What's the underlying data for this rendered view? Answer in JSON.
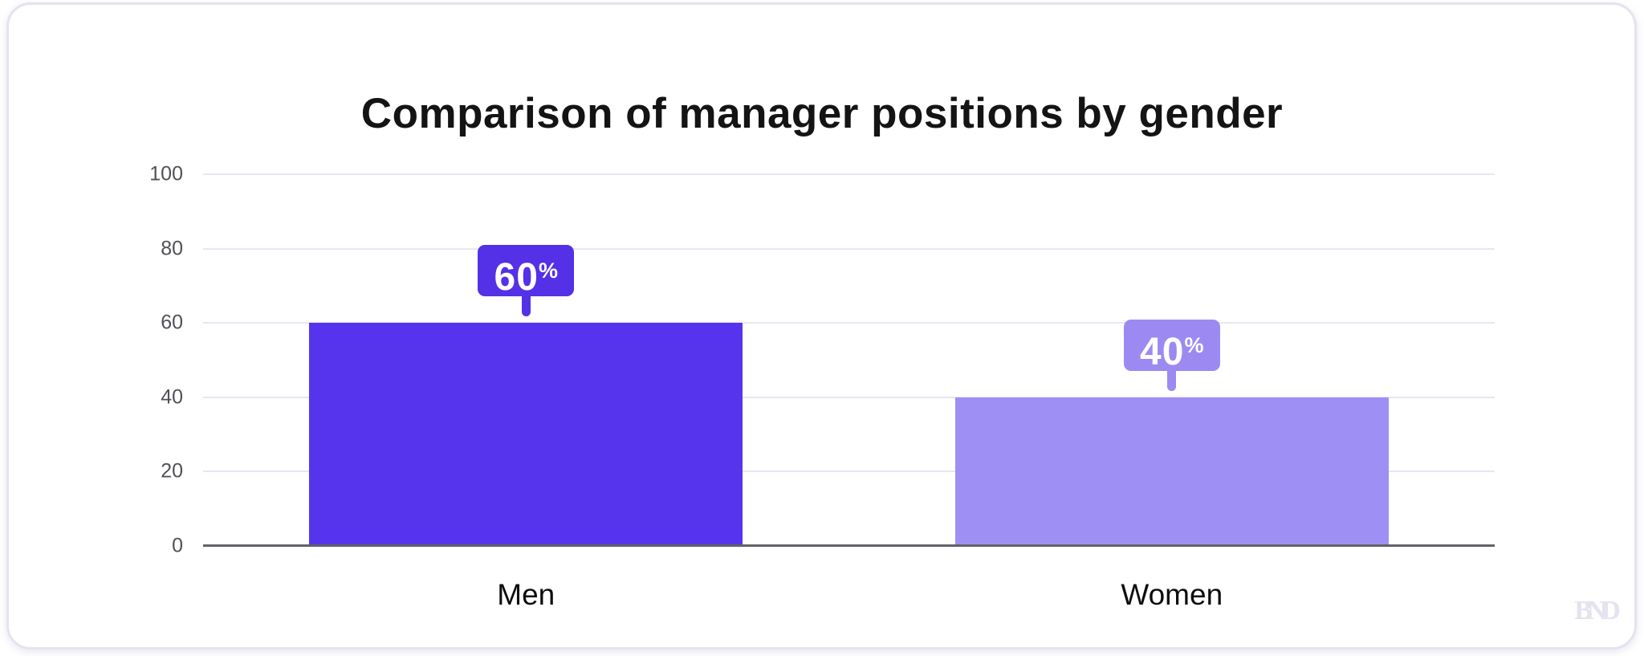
{
  "watermark": "BND",
  "colors": {
    "title_text": "#141414",
    "tick_text": "#505157",
    "category_text": "#0d0d0d",
    "grid": "#e7e6f2",
    "axis": "#626267",
    "card_border": "#e5e3f0",
    "badge_text": "#ffffff",
    "watermark_text": "#e4e3ef",
    "men_bar": "#5634ee",
    "men_badge": "#5431e6",
    "women_bar": "#9e8ff5",
    "women_badge": "#9c8af2"
  },
  "chart_data": {
    "type": "bar",
    "title": "Comparison of manager positions by gender",
    "categories": [
      "Men",
      "Women"
    ],
    "values": [
      60,
      40
    ],
    "value_suffix": "%",
    "bar_colors": [
      "#5634ee",
      "#9e8ff5"
    ],
    "label_bg_colors": [
      "#5431e6",
      "#9c8af2"
    ],
    "xlabel": "",
    "ylabel": "",
    "ylim": [
      0,
      100
    ],
    "yticks": [
      0,
      20,
      40,
      60,
      80,
      100
    ],
    "grid": true,
    "legend": false
  }
}
